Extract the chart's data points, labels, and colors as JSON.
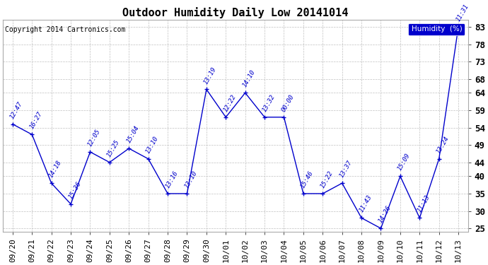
{
  "title": "Outdoor Humidity Daily Low 20141014",
  "copyright": "Copyright 2014 Cartronics.com",
  "legend_label": "Humidity  (%)",
  "x_labels": [
    "09/20",
    "09/21",
    "09/22",
    "09/23",
    "09/24",
    "09/25",
    "09/26",
    "09/27",
    "09/28",
    "09/29",
    "09/30",
    "10/01",
    "10/02",
    "10/03",
    "10/04",
    "10/05",
    "10/06",
    "10/07",
    "10/08",
    "10/09",
    "10/10",
    "10/11",
    "10/12",
    "10/13"
  ],
  "y_values": [
    55,
    52,
    38,
    32,
    47,
    44,
    48,
    45,
    35,
    35,
    65,
    57,
    64,
    57,
    57,
    35,
    35,
    38,
    28,
    25,
    40,
    28,
    45,
    83
  ],
  "annotations": [
    "12:47",
    "16:27",
    "14:18",
    "15:36",
    "12:05",
    "15:25",
    "15:04",
    "13:10",
    "13:16",
    "13:10",
    "13:19",
    "12:22",
    "14:10",
    "13:32",
    "00:00",
    "15:46",
    "15:22",
    "13:37",
    "11:43",
    "14:26",
    "15:09",
    "11:13",
    "13:24",
    "11:31"
  ],
  "ylim": [
    24,
    85
  ],
  "yticks": [
    25,
    30,
    35,
    40,
    44,
    49,
    54,
    59,
    64,
    68,
    73,
    78,
    83
  ],
  "line_color": "#0000cc",
  "bg_color": "#ffffff",
  "grid_color": "#c0c0c0",
  "title_fontsize": 11,
  "tick_fontsize": 8,
  "annot_fontsize": 6.5,
  "copyright_fontsize": 7
}
